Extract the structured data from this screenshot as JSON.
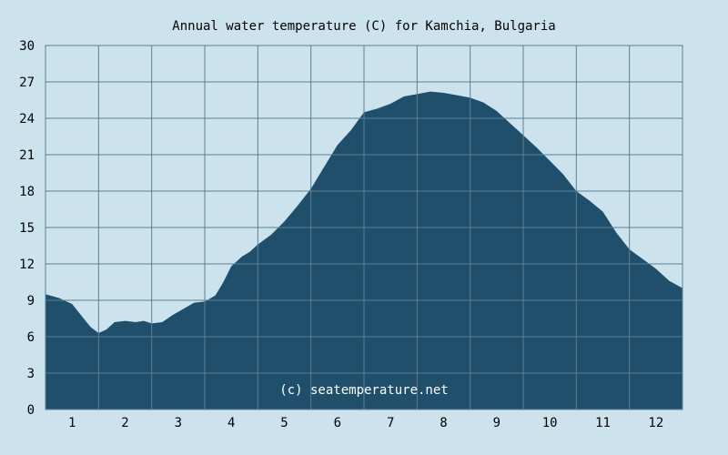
{
  "chart_data": {
    "type": "area",
    "title": "Annual water temperature (C) for Kamchia, Bulgaria",
    "xlabel": "",
    "ylabel": "",
    "x_ticks": [
      "1",
      "2",
      "3",
      "4",
      "5",
      "6",
      "7",
      "8",
      "9",
      "10",
      "11",
      "12"
    ],
    "y_ticks": [
      "0",
      "3",
      "6",
      "9",
      "12",
      "15",
      "18",
      "21",
      "24",
      "27",
      "30"
    ],
    "xlim": [
      0.5,
      12.5
    ],
    "ylim": [
      0,
      30
    ],
    "grid": true,
    "annotation": "(c) seatemperature.net",
    "fill_color": "#1f4f6a",
    "background_color": "#cce3ee",
    "grid_color": "#5d7f96",
    "x": [
      0.5,
      0.75,
      1.0,
      1.2,
      1.35,
      1.5,
      1.65,
      1.8,
      2.0,
      2.2,
      2.35,
      2.5,
      2.7,
      2.9,
      3.1,
      3.3,
      3.5,
      3.7,
      3.85,
      4.0,
      4.2,
      4.35,
      4.5,
      4.75,
      5.0,
      5.25,
      5.5,
      5.75,
      6.0,
      6.25,
      6.5,
      6.75,
      7.0,
      7.25,
      7.5,
      7.75,
      8.0,
      8.25,
      8.5,
      8.75,
      9.0,
      9.25,
      9.5,
      9.75,
      10.0,
      10.25,
      10.5,
      10.75,
      11.0,
      11.25,
      11.5,
      11.75,
      12.0,
      12.25,
      12.5
    ],
    "y": [
      9.5,
      9.2,
      8.7,
      7.6,
      6.8,
      6.3,
      6.6,
      7.2,
      7.3,
      7.2,
      7.3,
      7.1,
      7.2,
      7.8,
      8.3,
      8.8,
      8.9,
      9.4,
      10.5,
      11.8,
      12.6,
      13.0,
      13.6,
      14.4,
      15.5,
      16.8,
      18.2,
      20.0,
      21.8,
      23.0,
      24.5,
      24.8,
      25.2,
      25.8,
      26.0,
      26.2,
      26.1,
      25.9,
      25.7,
      25.3,
      24.6,
      23.6,
      22.6,
      21.6,
      20.5,
      19.4,
      18.0,
      17.2,
      16.3,
      14.6,
      13.2,
      12.4,
      11.6,
      10.6,
      10.0
    ]
  }
}
